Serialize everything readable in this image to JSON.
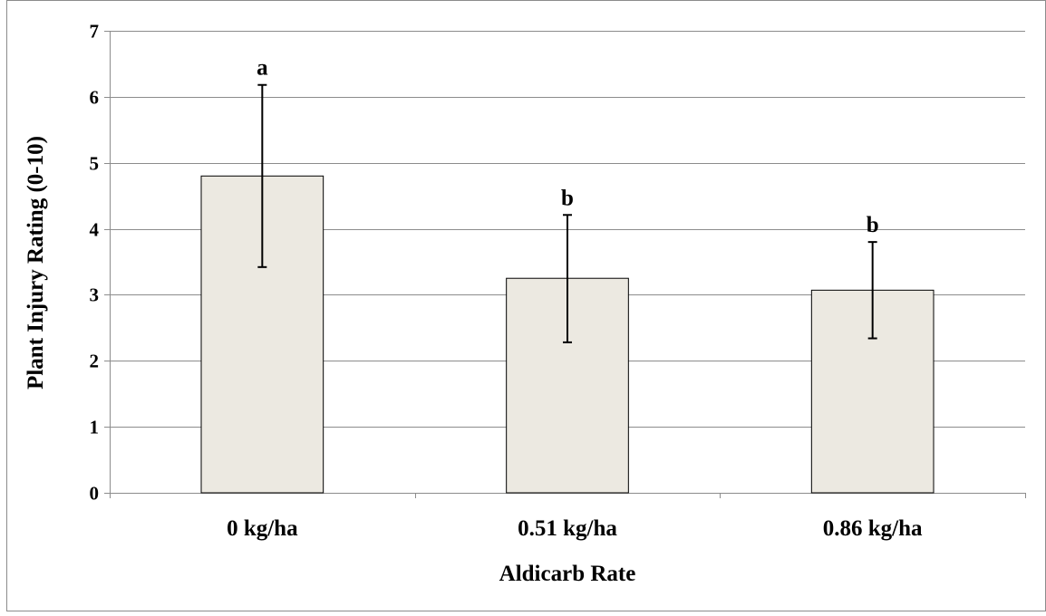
{
  "chart_data": {
    "type": "bar",
    "title": "",
    "xlabel": "Aldicarb Rate",
    "ylabel": "Plant Injury Rating (0-10)",
    "ylim": [
      0,
      7
    ],
    "yticks": [
      0,
      1,
      2,
      3,
      4,
      5,
      6,
      7
    ],
    "grid": true,
    "categories": [
      "0 kg/ha",
      "0.51 kg/ha",
      "0.86 kg/ha"
    ],
    "values": [
      4.8,
      3.25,
      3.07
    ],
    "error_low": [
      3.42,
      2.28,
      2.34
    ],
    "error_high": [
      6.18,
      4.21,
      3.8
    ],
    "annotations": [
      "a",
      "b",
      "b"
    ],
    "colors": {
      "bar_fill": "#ECE9E1",
      "bar_stroke": "#000000",
      "grid": "#8C8C8C",
      "frame": "#8C8C8C",
      "errorbar": "#000000"
    }
  }
}
